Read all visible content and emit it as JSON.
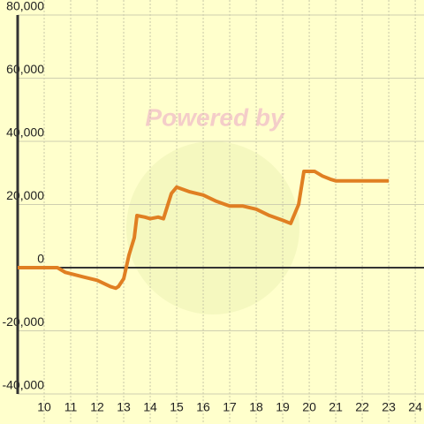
{
  "chart_data": {
    "type": "line",
    "watermark": "Powered by",
    "x": [
      9,
      10.5,
      10.8,
      11.5,
      12,
      12.5,
      12.7,
      12.8,
      13.0,
      13.2,
      13.4,
      13.5,
      13.8,
      14,
      14.3,
      14.5,
      14.8,
      15,
      15.5,
      16,
      16.5,
      17,
      17.5,
      18,
      18.5,
      19,
      19.3,
      19.6,
      19.8,
      20.2,
      20.5,
      20.8,
      21,
      23
    ],
    "series": [
      {
        "color": "#e07f22",
        "values": [
          0,
          0,
          -1500,
          -3000,
          -4000,
          -6000,
          -6500,
          -6000,
          -3500,
          4000,
          9500,
          16500,
          16000,
          15500,
          16000,
          15500,
          23500,
          25500,
          24000,
          23000,
          21000,
          19500,
          19500,
          18500,
          16500,
          15000,
          14000,
          20000,
          30500,
          30500,
          29000,
          28000,
          27500,
          27500
        ]
      }
    ],
    "xlim": [
      9,
      24.33
    ],
    "ylim": [
      -40000,
      80000
    ],
    "xticks": [
      10,
      11,
      12,
      13,
      14,
      15,
      16,
      17,
      18,
      19,
      20,
      21,
      22,
      23,
      24
    ],
    "yticks": [
      {
        "value": -40000,
        "label": "-40,000"
      },
      {
        "value": -20000,
        "label": "-20,000"
      },
      0,
      {
        "value": 20000,
        "label": "20,000"
      },
      {
        "value": 40000,
        "label": "40,000"
      },
      {
        "value": 60000,
        "label": "60,000"
      },
      {
        "value": 80000,
        "label": "80,000"
      }
    ],
    "grid": true
  }
}
